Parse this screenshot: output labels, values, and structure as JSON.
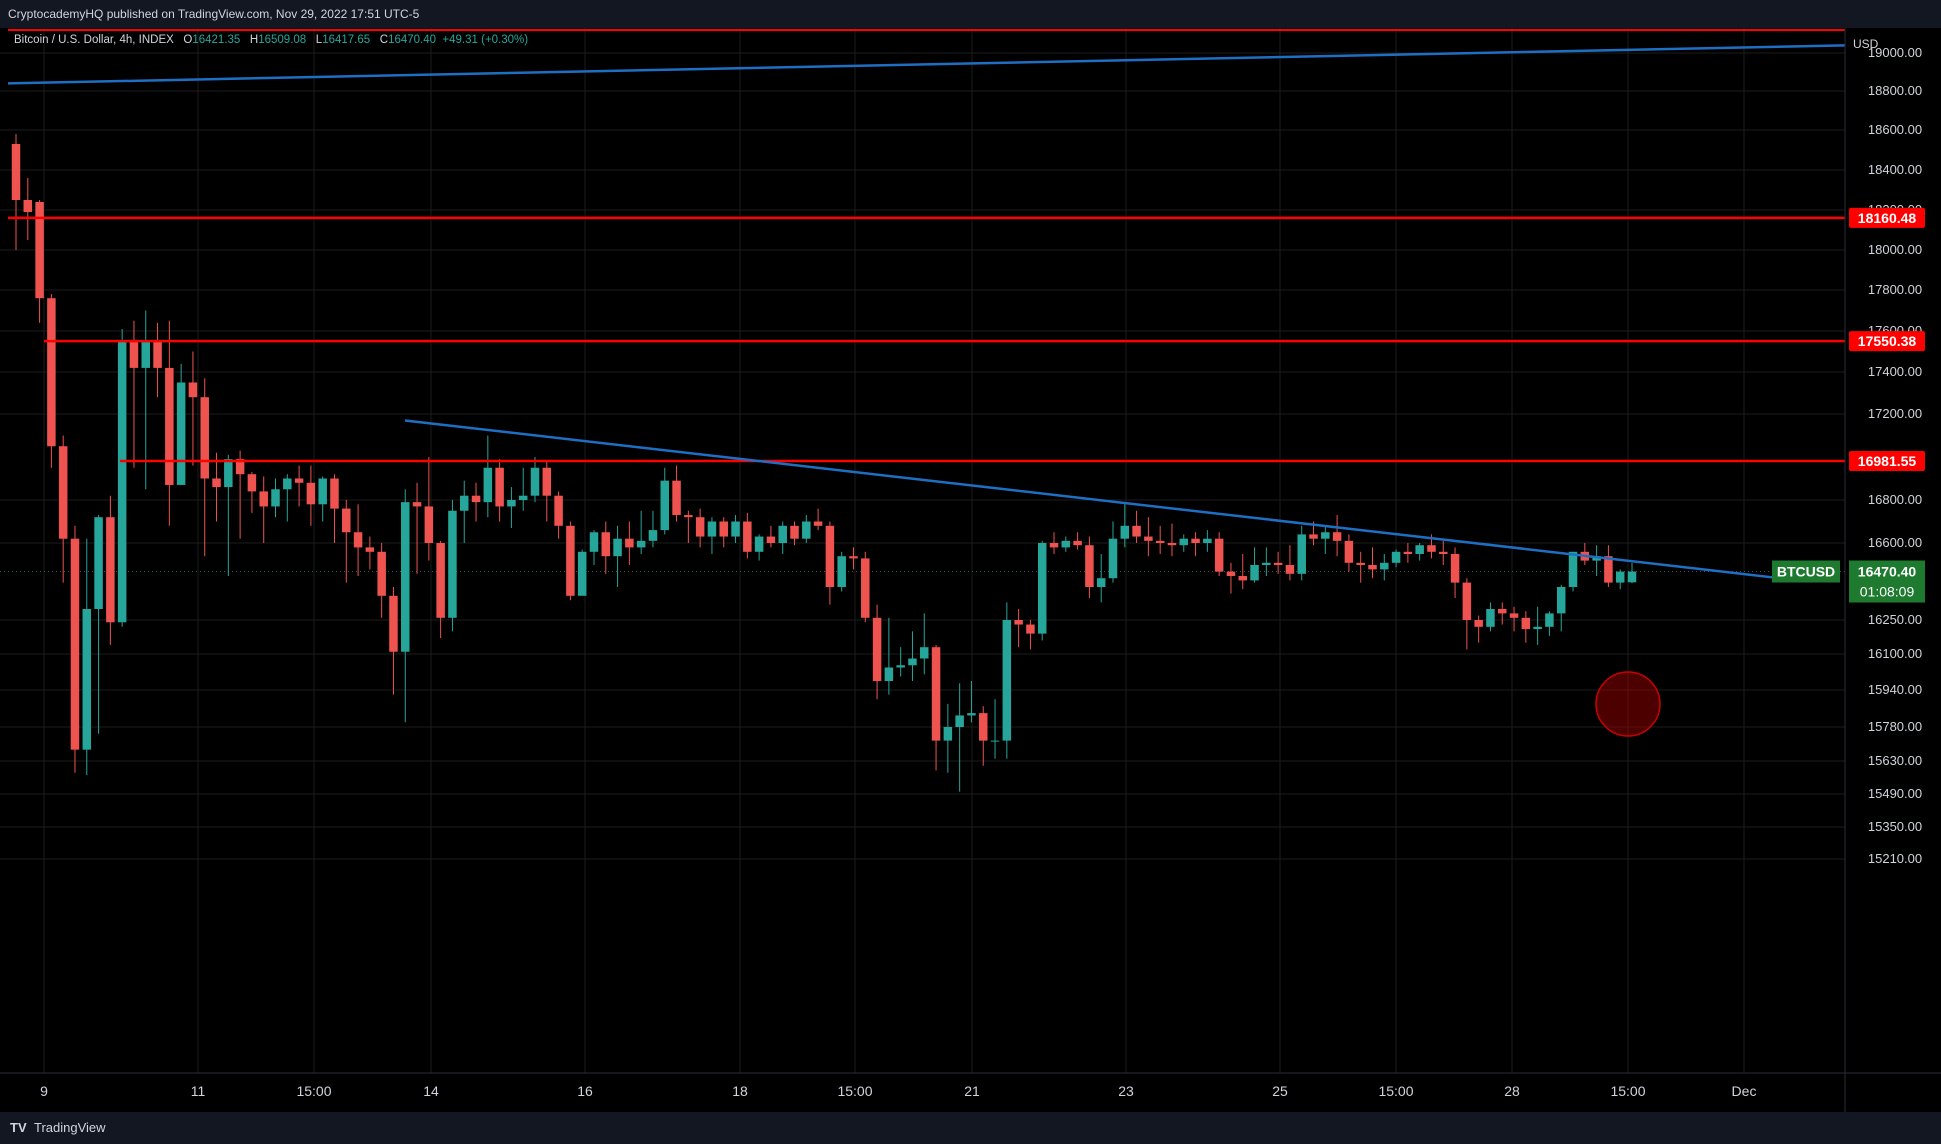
{
  "header": {
    "published": "CryptocademyHQ published on TradingView.com, Nov 29, 2022 17:51 UTC-5"
  },
  "footer": {
    "brand": "TradingView",
    "logo_glyph": "TV"
  },
  "legend": {
    "symbol": "Bitcoin / U.S. Dollar, 4h, INDEX",
    "o_label": "O",
    "o": "16421.35",
    "h_label": "H",
    "h": "16509.08",
    "l_label": "L",
    "l": "16417.65",
    "c_label": "C",
    "c": "16470.40",
    "change": "+49.31 (+0.30%)"
  },
  "colors": {
    "up": "#26a69a",
    "down": "#ef5350",
    "level": "#ff0000",
    "trend": "#1e6fc4",
    "grid": "#1c1c1c",
    "text": "#d1d4dc"
  },
  "chart_data": {
    "type": "candlestick",
    "symbol": "BTCUSD",
    "timeframe": "4h",
    "currency": "USD",
    "y_axis_ticks": [
      19000,
      18800,
      18600,
      18400,
      18200,
      18000,
      17800,
      17600,
      17400,
      17200,
      16800,
      16600,
      16250,
      16100,
      15940,
      15780,
      15630,
      15490,
      15350,
      15210
    ],
    "x_axis_ticks": [
      "9",
      "11",
      "15:00",
      "14",
      "16",
      "18",
      "15:00",
      "21",
      "23",
      "25",
      "15:00",
      "28",
      "15:00",
      "Dec"
    ],
    "horizontal_levels": [
      "18160.48",
      "17550.38",
      "16981.55"
    ],
    "last_price": {
      "label": "BTCUSD",
      "value": "16470.40",
      "countdown": "01:08:09"
    },
    "candles": [
      [
        18530,
        18250,
        18580,
        18000
      ],
      [
        18250,
        18190,
        18360,
        18050
      ],
      [
        18240,
        17760,
        18250,
        17640
      ],
      [
        17760,
        17050,
        17780,
        16950
      ],
      [
        17050,
        16620,
        17100,
        16420
      ],
      [
        16620,
        15680,
        16680,
        15580
      ],
      [
        15680,
        16300,
        16620,
        15570
      ],
      [
        16300,
        16720,
        16730,
        15750
      ],
      [
        16720,
        16240,
        16820,
        16140
      ],
      [
        16240,
        17550,
        17610,
        16220
      ],
      [
        17550,
        17420,
        17650,
        16950
      ],
      [
        17420,
        17550,
        17700,
        16850
      ],
      [
        17550,
        17420,
        17640,
        17280
      ],
      [
        17420,
        16870,
        17650,
        16680
      ],
      [
        16870,
        17350,
        17440,
        17000
      ],
      [
        17350,
        17280,
        17500,
        16960
      ],
      [
        17280,
        16900,
        17370,
        16540
      ],
      [
        16900,
        16860,
        17020,
        16700
      ],
      [
        16860,
        16990,
        17010,
        16450
      ],
      [
        16990,
        16920,
        17030,
        16620
      ],
      [
        16920,
        16840,
        16930,
        16740
      ],
      [
        16840,
        16770,
        16910,
        16600
      ],
      [
        16770,
        16850,
        16900,
        16720
      ],
      [
        16850,
        16900,
        16920,
        16700
      ],
      [
        16900,
        16880,
        16960,
        16770
      ],
      [
        16880,
        16780,
        16960,
        16680
      ],
      [
        16780,
        16900,
        16910,
        16700
      ],
      [
        16900,
        16760,
        16920,
        16600
      ],
      [
        16760,
        16650,
        16800,
        16420
      ],
      [
        16650,
        16580,
        16780,
        16450
      ],
      [
        16580,
        16560,
        16630,
        16480
      ],
      [
        16560,
        16360,
        16600,
        16260
      ],
      [
        16360,
        16110,
        16400,
        15920
      ],
      [
        16110,
        16790,
        16850,
        15800
      ],
      [
        16790,
        16770,
        16880,
        16460
      ],
      [
        16770,
        16600,
        17000,
        16520
      ],
      [
        16600,
        16260,
        16610,
        16170
      ],
      [
        16260,
        16750,
        16800,
        16200
      ],
      [
        16750,
        16820,
        16890,
        16600
      ],
      [
        16820,
        16790,
        16880,
        16700
      ],
      [
        16790,
        16950,
        17100,
        16720
      ],
      [
        16950,
        16770,
        16990,
        16700
      ],
      [
        16770,
        16800,
        16860,
        16670
      ],
      [
        16800,
        16820,
        16950,
        16750
      ],
      [
        16820,
        16950,
        17000,
        16790
      ],
      [
        16950,
        16820,
        16980,
        16700
      ],
      [
        16820,
        16680,
        16840,
        16620
      ],
      [
        16680,
        16360,
        16700,
        16340
      ],
      [
        16360,
        16560,
        16570,
        16450
      ],
      [
        16560,
        16650,
        16660,
        16500
      ],
      [
        16650,
        16540,
        16700,
        16460
      ],
      [
        16540,
        16620,
        16680,
        16400
      ],
      [
        16620,
        16580,
        16700,
        16500
      ],
      [
        16580,
        16610,
        16750,
        16550
      ],
      [
        16610,
        16660,
        16750,
        16580
      ],
      [
        16660,
        16890,
        16950,
        16640
      ],
      [
        16890,
        16730,
        16960,
        16700
      ],
      [
        16730,
        16720,
        16750,
        16600
      ],
      [
        16720,
        16630,
        16760,
        16580
      ],
      [
        16630,
        16700,
        16720,
        16550
      ],
      [
        16700,
        16630,
        16720,
        16580
      ],
      [
        16630,
        16700,
        16730,
        16600
      ],
      [
        16700,
        16560,
        16740,
        16530
      ],
      [
        16560,
        16630,
        16640,
        16520
      ],
      [
        16630,
        16600,
        16680,
        16580
      ],
      [
        16600,
        16680,
        16700,
        16550
      ],
      [
        16680,
        16620,
        16700,
        16590
      ],
      [
        16620,
        16700,
        16730,
        16600
      ],
      [
        16700,
        16680,
        16760,
        16660
      ],
      [
        16680,
        16400,
        16700,
        16320
      ],
      [
        16400,
        16540,
        16560,
        16380
      ],
      [
        16540,
        16530,
        16580,
        16480
      ],
      [
        16530,
        16260,
        16560,
        16240
      ],
      [
        16260,
        15980,
        16320,
        15900
      ],
      [
        15980,
        16040,
        16260,
        15920
      ],
      [
        16040,
        16050,
        16130,
        16000
      ],
      [
        16050,
        16080,
        16200,
        15980
      ],
      [
        16080,
        16130,
        16280,
        16010
      ],
      [
        16130,
        15720,
        16140,
        15590
      ],
      [
        15720,
        15780,
        15880,
        15580
      ],
      [
        15780,
        15830,
        15970,
        15500
      ],
      [
        15830,
        15840,
        15980,
        15800
      ],
      [
        15840,
        15720,
        15870,
        15610
      ],
      [
        15720,
        15720,
        15900,
        15640
      ],
      [
        15720,
        16250,
        16330,
        15640
      ],
      [
        16250,
        16230,
        16300,
        16130
      ],
      [
        16230,
        16190,
        16250,
        16120
      ],
      [
        16190,
        16600,
        16610,
        16160
      ],
      [
        16600,
        16580,
        16650,
        16550
      ],
      [
        16580,
        16610,
        16630,
        16560
      ],
      [
        16610,
        16590,
        16650,
        16570
      ],
      [
        16590,
        16400,
        16630,
        16350
      ],
      [
        16400,
        16440,
        16550,
        16330
      ],
      [
        16440,
        16620,
        16700,
        16420
      ],
      [
        16620,
        16680,
        16780,
        16580
      ],
      [
        16680,
        16630,
        16750,
        16600
      ],
      [
        16630,
        16610,
        16720,
        16540
      ],
      [
        16610,
        16600,
        16680,
        16550
      ],
      [
        16600,
        16590,
        16690,
        16540
      ],
      [
        16590,
        16620,
        16640,
        16560
      ],
      [
        16620,
        16600,
        16650,
        16540
      ],
      [
        16600,
        16620,
        16660,
        16560
      ],
      [
        16620,
        16470,
        16650,
        16450
      ],
      [
        16470,
        16450,
        16510,
        16370
      ],
      [
        16450,
        16430,
        16550,
        16390
      ],
      [
        16430,
        16500,
        16580,
        16420
      ],
      [
        16500,
        16510,
        16580,
        16450
      ],
      [
        16510,
        16500,
        16560,
        16460
      ],
      [
        16500,
        16460,
        16590,
        16430
      ],
      [
        16460,
        16640,
        16680,
        16430
      ],
      [
        16640,
        16620,
        16700,
        16590
      ],
      [
        16620,
        16650,
        16680,
        16550
      ],
      [
        16650,
        16610,
        16730,
        16540
      ],
      [
        16610,
        16510,
        16640,
        16470
      ],
      [
        16510,
        16500,
        16560,
        16420
      ],
      [
        16500,
        16480,
        16580,
        16440
      ],
      [
        16480,
        16510,
        16550,
        16430
      ],
      [
        16510,
        16560,
        16570,
        16490
      ],
      [
        16560,
        16550,
        16600,
        16510
      ],
      [
        16550,
        16590,
        16600,
        16520
      ],
      [
        16590,
        16560,
        16640,
        16530
      ],
      [
        16560,
        16550,
        16610,
        16500
      ],
      [
        16550,
        16420,
        16580,
        16350
      ],
      [
        16420,
        16250,
        16440,
        16120
      ],
      [
        16250,
        16220,
        16270,
        16150
      ],
      [
        16220,
        16300,
        16330,
        16200
      ],
      [
        16300,
        16280,
        16330,
        16230
      ],
      [
        16280,
        16260,
        16310,
        16200
      ],
      [
        16260,
        16210,
        16290,
        16150
      ],
      [
        16210,
        16220,
        16310,
        16140
      ],
      [
        16220,
        16280,
        16290,
        16180
      ],
      [
        16280,
        16400,
        16410,
        16200
      ],
      [
        16400,
        16560,
        16560,
        16380
      ],
      [
        16560,
        16520,
        16600,
        16500
      ],
      [
        16520,
        16540,
        16590,
        16450
      ],
      [
        16540,
        16420,
        16590,
        16400
      ],
      [
        16420,
        16470,
        16480,
        16390
      ],
      [
        16421.35,
        16470.4,
        16509.08,
        16417.65
      ]
    ]
  }
}
